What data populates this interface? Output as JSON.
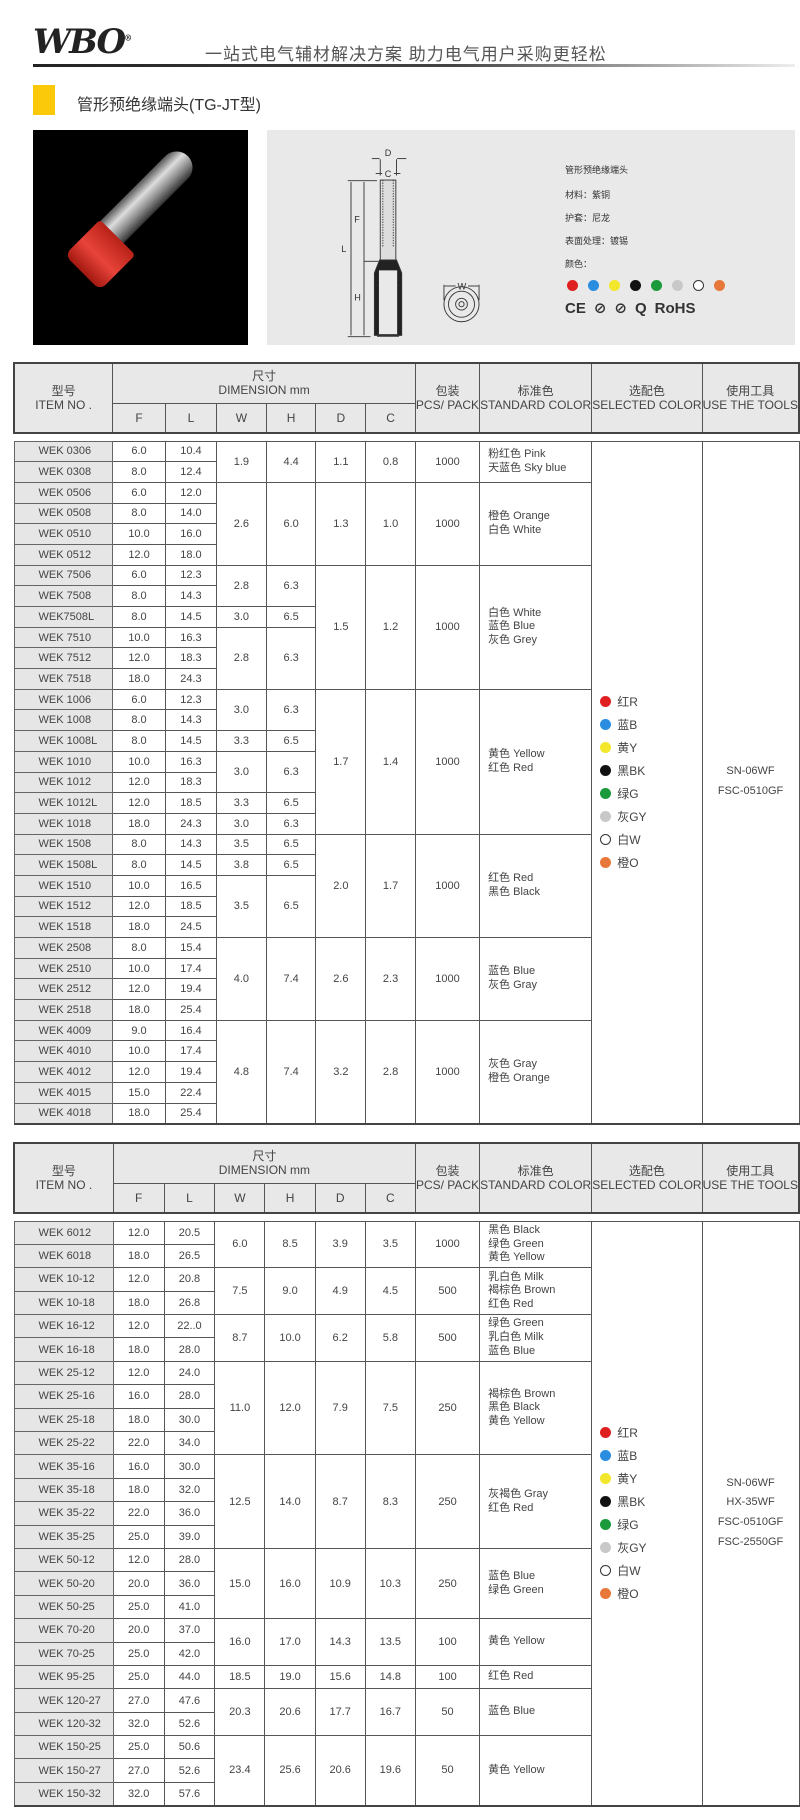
{
  "header": {
    "logo": "WBO",
    "tagline": "一站式电气辅材解决方案  助力电气用户采购更轻松"
  },
  "product": {
    "title": "管形预绝缘端头(TG-JT型)"
  },
  "diagram": {
    "labels": {
      "D": "D",
      "C": "C",
      "F": "F",
      "L": "L",
      "H": "H",
      "W": "W"
    }
  },
  "specs": {
    "name": "管形预绝缘端头",
    "material": "材料：紫铜",
    "sleeve": "护套：尼龙",
    "surface": "表面处理：镀锡",
    "color_label": "颜色：",
    "colors": [
      "#e02020",
      "#2a8de0",
      "#f2e72a",
      "#111111",
      "#1a9a3a",
      "#c8c8c8",
      "#ffffff",
      "#e8783a"
    ],
    "certs": [
      "CE",
      "⊘",
      "⊘",
      "Q",
      "RoHS"
    ]
  },
  "table_header": {
    "item_cn": "型号",
    "item_en": "ITEM NO .",
    "dim_cn": "尺寸",
    "dim_en": "DIMENSION mm",
    "cols": [
      "F",
      "L",
      "W",
      "H",
      "D",
      "C"
    ],
    "pack_cn": "包装",
    "pack_en": "PCS/ PACK",
    "std_cn": "标准色",
    "std_en": "STANDARD COLOR",
    "sel_cn": "选配色",
    "sel_en": "SELECTED COLOR",
    "tool_cn": "使用工具",
    "tool_en": "USE THE TOOLS"
  },
  "selected_colors": [
    {
      "label": "红R",
      "color": "#e02020"
    },
    {
      "label": "蓝B",
      "color": "#2a8de0"
    },
    {
      "label": "黄Y",
      "color": "#f2e72a"
    },
    {
      "label": "黑BK",
      "color": "#111111"
    },
    {
      "label": "绿G",
      "color": "#1a9a3a"
    },
    {
      "label": "灰GY",
      "color": "#c8c8c8"
    },
    {
      "label": "白W",
      "color": "#ffffff"
    },
    {
      "label": "橙O",
      "color": "#e8783a"
    }
  ],
  "table1": {
    "rows": [
      [
        "WEK 0306",
        "6.0",
        "10.4"
      ],
      [
        "WEK 0308",
        "8.0",
        "12.4"
      ],
      [
        "WEK 0506",
        "6.0",
        "12.0"
      ],
      [
        "WEK 0508",
        "8.0",
        "14.0"
      ],
      [
        "WEK 0510",
        "10.0",
        "16.0"
      ],
      [
        "WEK 0512",
        "12.0",
        "18.0"
      ],
      [
        "WEK 7506",
        "6.0",
        "12.3"
      ],
      [
        "WEK 7508",
        "8.0",
        "14.3"
      ],
      [
        "WEK7508L",
        "8.0",
        "14.5"
      ],
      [
        "WEK 7510",
        "10.0",
        "16.3"
      ],
      [
        "WEK 7512",
        "12.0",
        "18.3"
      ],
      [
        "WEK 7518",
        "18.0",
        "24.3"
      ],
      [
        "WEK 1006",
        "6.0",
        "12.3"
      ],
      [
        "WEK 1008",
        "8.0",
        "14.3"
      ],
      [
        "WEK 1008L",
        "8.0",
        "14.5"
      ],
      [
        "WEK 1010",
        "10.0",
        "16.3"
      ],
      [
        "WEK 1012",
        "12.0",
        "18.3"
      ],
      [
        "WEK 1012L",
        "12.0",
        "18.5"
      ],
      [
        "WEK 1018",
        "18.0",
        "24.3"
      ],
      [
        "WEK 1508",
        "8.0",
        "14.3"
      ],
      [
        "WEK 1508L",
        "8.0",
        "14.5"
      ],
      [
        "WEK 1510",
        "10.0",
        "16.5"
      ],
      [
        "WEK 1512",
        "12.0",
        "18.5"
      ],
      [
        "WEK 1518",
        "18.0",
        "24.5"
      ],
      [
        "WEK 2508",
        "8.0",
        "15.4"
      ],
      [
        "WEK 2510",
        "10.0",
        "17.4"
      ],
      [
        "WEK 2512",
        "12.0",
        "19.4"
      ],
      [
        "WEK 2518",
        "18.0",
        "25.4"
      ],
      [
        "WEK 4009",
        "9.0",
        "16.4"
      ],
      [
        "WEK 4010",
        "10.0",
        "17.4"
      ],
      [
        "WEK 4012",
        "12.0",
        "19.4"
      ],
      [
        "WEK 4015",
        "15.0",
        "22.4"
      ],
      [
        "WEK 4018",
        "18.0",
        "25.4"
      ]
    ],
    "wh_groups": [
      {
        "W": "1.9",
        "H": "4.4",
        "rows": 2
      },
      {
        "W": "2.6",
        "H": "6.0",
        "rows": 4
      },
      {
        "W": "2.8",
        "H": "6.3",
        "rows": 2
      },
      {
        "W": "3.0",
        "H": "6.5",
        "rows": 1
      },
      {
        "W": "2.8",
        "H": "6.3",
        "rows": 3
      },
      {
        "W": "3.0",
        "H": "6.3",
        "rows": 2
      },
      {
        "W": "3.3",
        "H": "6.5",
        "rows": 1
      },
      {
        "W": "3.0",
        "H": "6.3",
        "rows": 2
      },
      {
        "W": "3.3",
        "H": "6.5",
        "rows": 1
      },
      {
        "W": "3.0",
        "H": "6.3",
        "rows": 1
      },
      {
        "W": "3.5",
        "H": "6.5",
        "rows": 1
      },
      {
        "W": "3.8",
        "H": "6.5",
        "rows": 1
      },
      {
        "W": "3.5",
        "H": "6.5",
        "rows": 3
      },
      {
        "W": "4.0",
        "H": "7.4",
        "rows": 4
      },
      {
        "W": "4.8",
        "H": "7.4",
        "rows": 5
      }
    ],
    "dc_groups": [
      {
        "D": "1.1",
        "C": "0.8",
        "pack": "1000",
        "colors": [
          "粉红色 Pink",
          "天蓝色 Sky blue"
        ],
        "rows": 2
      },
      {
        "D": "1.3",
        "C": "1.0",
        "pack": "1000",
        "colors": [
          "橙色 Orange",
          "白色 White"
        ],
        "rows": 4
      },
      {
        "D": "1.5",
        "C": "1.2",
        "pack": "1000",
        "colors": [
          "白色 White",
          "蓝色 Blue",
          "灰色 Grey"
        ],
        "rows": 6
      },
      {
        "D": "1.7",
        "C": "1.4",
        "pack": "1000",
        "colors": [
          "黄色 Yellow",
          "红色 Red"
        ],
        "rows": 7
      },
      {
        "D": "2.0",
        "C": "1.7",
        "pack": "1000",
        "colors": [
          "红色 Red",
          "黑色 Black"
        ],
        "rows": 5
      },
      {
        "D": "2.6",
        "C": "2.3",
        "pack": "1000",
        "colors": [
          "蓝色 Blue",
          "灰色 Gray"
        ],
        "rows": 4
      },
      {
        "D": "3.2",
        "C": "2.8",
        "pack": "1000",
        "colors": [
          "灰色 Gray",
          "橙色 Orange"
        ],
        "rows": 5
      }
    ],
    "tools": [
      "SN-06WF",
      "FSC-0510GF"
    ]
  },
  "table2": {
    "rows": [
      [
        "WEK 6012",
        "12.0",
        "20.5"
      ],
      [
        "WEK 6018",
        "18.0",
        "26.5"
      ],
      [
        "WEK 10-12",
        "12.0",
        "20.8"
      ],
      [
        "WEK 10-18",
        "18.0",
        "26.8"
      ],
      [
        "WEK 16-12",
        "12.0",
        "22..0"
      ],
      [
        "WEK 16-18",
        "18.0",
        "28.0"
      ],
      [
        "WEK 25-12",
        "12.0",
        "24.0"
      ],
      [
        "WEK 25-16",
        "16.0",
        "28.0"
      ],
      [
        "WEK 25-18",
        "18.0",
        "30.0"
      ],
      [
        "WEK 25-22",
        "22.0",
        "34.0"
      ],
      [
        "WEK 35-16",
        "16.0",
        "30.0"
      ],
      [
        "WEK 35-18",
        "18.0",
        "32.0"
      ],
      [
        "WEK 35-22",
        "22.0",
        "36.0"
      ],
      [
        "WEK 35-25",
        "25.0",
        "39.0"
      ],
      [
        "WEK 50-12",
        "12.0",
        "28.0"
      ],
      [
        "WEK 50-20",
        "20.0",
        "36.0"
      ],
      [
        "WEK 50-25",
        "25.0",
        "41.0"
      ],
      [
        "WEK 70-20",
        "20.0",
        "37.0"
      ],
      [
        "WEK 70-25",
        "25.0",
        "42.0"
      ],
      [
        "WEK 95-25",
        "25.0",
        "44.0"
      ],
      [
        "WEK 120-27",
        "27.0",
        "47.6"
      ],
      [
        "WEK 120-32",
        "32.0",
        "52.6"
      ],
      [
        "WEK 150-25",
        "25.0",
        "50.6"
      ],
      [
        "WEK 150-27",
        "27.0",
        "52.6"
      ],
      [
        "WEK 150-32",
        "32.0",
        "57.6"
      ]
    ],
    "groups": [
      {
        "W": "6.0",
        "H": "8.5",
        "D": "3.9",
        "C": "3.5",
        "pack": "1000",
        "colors": [
          "黑色 Black",
          "绿色 Green",
          "黄色 Yellow"
        ],
        "rows": 2
      },
      {
        "W": "7.5",
        "H": "9.0",
        "D": "4.9",
        "C": "4.5",
        "pack": "500",
        "colors": [
          "乳白色 Milk",
          "褐棕色 Brown",
          "红色 Red"
        ],
        "rows": 2
      },
      {
        "W": "8.7",
        "H": "10.0",
        "D": "6.2",
        "C": "5.8",
        "pack": "500",
        "colors": [
          "绿色 Green",
          "乳白色 Milk",
          "蓝色 Blue"
        ],
        "rows": 2
      },
      {
        "W": "11.0",
        "H": "12.0",
        "D": "7.9",
        "C": "7.5",
        "pack": "250",
        "colors": [
          "褐棕色 Brown",
          "黑色 Black",
          "黄色 Yellow"
        ],
        "rows": 4
      },
      {
        "W": "12.5",
        "H": "14.0",
        "D": "8.7",
        "C": "8.3",
        "pack": "250",
        "colors": [
          "灰褐色 Gray",
          "红色 Red"
        ],
        "rows": 4
      },
      {
        "W": "15.0",
        "H": "16.0",
        "D": "10.9",
        "C": "10.3",
        "pack": "250",
        "colors": [
          "蓝色 Blue",
          "绿色 Green"
        ],
        "rows": 3
      },
      {
        "W": "16.0",
        "H": "17.0",
        "D": "14.3",
        "C": "13.5",
        "pack": "100",
        "colors": [
          "黄色 Yellow"
        ],
        "rows": 2
      },
      {
        "W": "18.5",
        "H": "19.0",
        "D": "15.6",
        "C": "14.8",
        "pack": "100",
        "colors": [
          "红色 Red"
        ],
        "rows": 1
      },
      {
        "W": "20.3",
        "H": "20.6",
        "D": "17.7",
        "C": "16.7",
        "pack": "50",
        "colors": [
          "蓝色 Blue"
        ],
        "rows": 2
      },
      {
        "W": "23.4",
        "H": "25.6",
        "D": "20.6",
        "C": "19.6",
        "pack": "50",
        "colors": [
          "黄色 Yellow"
        ],
        "rows": 3
      }
    ],
    "tools": [
      "SN-06WF",
      "HX-35WF",
      "FSC-0510GF",
      "FSC-2550GF"
    ]
  }
}
